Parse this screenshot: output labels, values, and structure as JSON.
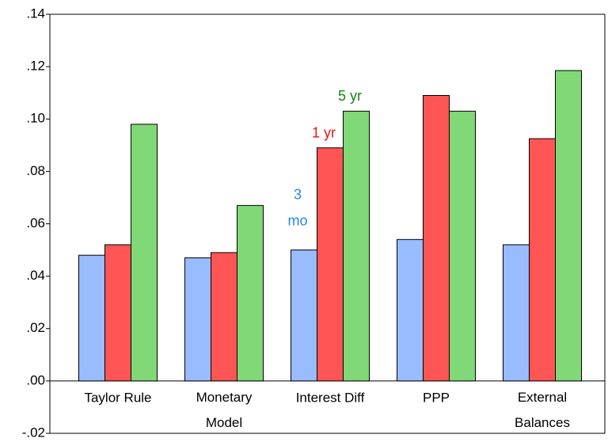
{
  "chart_data": {
    "type": "bar",
    "categories": [
      "Taylor Rule",
      "Monetary\nModel",
      "Interest Diff",
      "PPP",
      "External\nBalances"
    ],
    "series": [
      {
        "name": "3\nmo",
        "color": "#99bbff",
        "values": [
          0.048,
          0.047,
          0.05,
          0.054,
          0.052
        ]
      },
      {
        "name": "1 yr",
        "color": "#ff5555",
        "values": [
          0.052,
          0.049,
          0.089,
          0.109,
          0.0925
        ]
      },
      {
        "name": "5 yr",
        "color": "#80d877",
        "values": [
          0.098,
          0.067,
          0.103,
          0.103,
          0.1185
        ]
      }
    ],
    "legend_label_colors": [
      "#2288ee",
      "#ee1111",
      "#118811"
    ],
    "ylim": [
      -0.02,
      0.14
    ],
    "yticks": [
      {
        "value": -0.02,
        "label": "-.02"
      },
      {
        "value": 0,
        "label": ".00"
      },
      {
        "value": 0.02,
        "label": ".02"
      },
      {
        "value": 0.04,
        "label": ".04"
      },
      {
        "value": 0.06,
        "label": ".06"
      },
      {
        "value": 0.08,
        "label": ".08"
      },
      {
        "value": 0.1,
        "label": ".10"
      },
      {
        "value": 0.12,
        "label": ".12"
      },
      {
        "value": 0.14,
        "label": ".14"
      }
    ]
  }
}
